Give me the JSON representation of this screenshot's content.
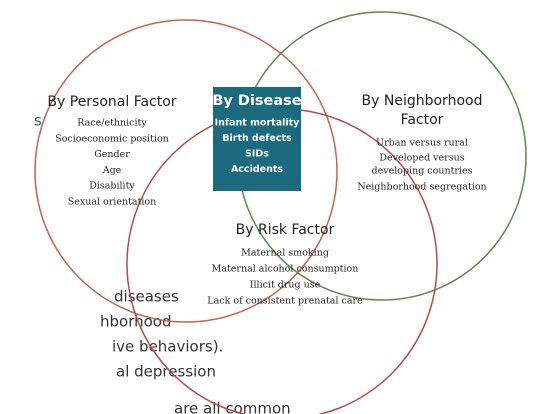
{
  "background": {
    "fragments": [
      "s",
      "diseases",
      "hborhood",
      "ive behaviors).",
      "al depression",
      "are all common"
    ]
  },
  "personal": {
    "title": "By Personal Factor",
    "items": [
      "Race/ethnicity",
      "Socioeconomic position",
      "Gender",
      "Age",
      "Disability",
      "Sexual orientation"
    ]
  },
  "disease": {
    "title": "By Disease",
    "items": [
      "Infant mortality",
      "Birth defects",
      "SIDs",
      "Accidents"
    ]
  },
  "neighborhood": {
    "title": [
      "By Neighborhood",
      "Factor"
    ],
    "items": [
      "Urban versus rural",
      "Developed versus",
      "developing countries",
      "Neighborhood segregation"
    ]
  },
  "risk": {
    "title": "By Risk Factor",
    "items": [
      "Maternal smoking",
      "Maternal alcohol consumption",
      "Illicit drug use",
      "Lack of consistent prenatal care"
    ]
  }
}
